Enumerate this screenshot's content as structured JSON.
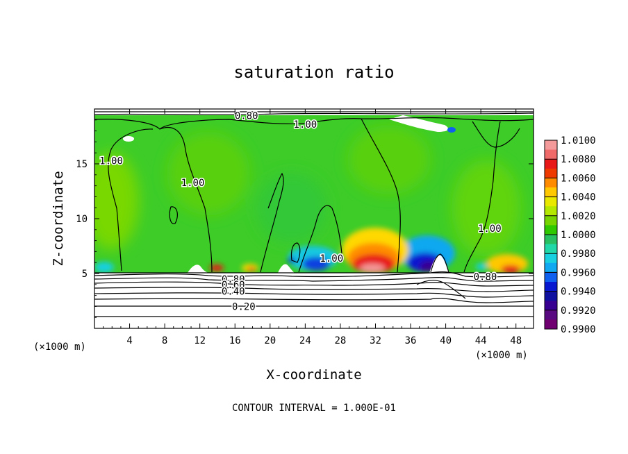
{
  "chart_data": {
    "type": "heatmap",
    "title": "saturation ratio",
    "xlabel": "X-coordinate",
    "ylabel": "Z-coordinate",
    "x_unit": "(×1000 m)",
    "xlim": [
      0,
      50
    ],
    "ylim": [
      0,
      20
    ],
    "xticks": [
      4,
      8,
      12,
      16,
      20,
      24,
      28,
      32,
      36,
      40,
      44,
      48
    ],
    "yticks": [
      5,
      10,
      15
    ],
    "footer": "CONTOUR INTERVAL = 1.000E-01",
    "colorbar": {
      "range": [
        0.99,
        1.01
      ],
      "labels": [
        "1.0100",
        "1.0080",
        "1.0060",
        "1.0040",
        "1.0020",
        "1.0000",
        "0.9980",
        "0.9960",
        "0.9940",
        "0.9920",
        "0.9900"
      ],
      "colors": [
        "#f49a9a",
        "#f06a6a",
        "#e81818",
        "#ee3a00",
        "#ff8c00",
        "#ffc800",
        "#e8e800",
        "#b4e800",
        "#78d400",
        "#30c800",
        "#28c060",
        "#20d8a8",
        "#18d0e0",
        "#10a8f0",
        "#1060f0",
        "#0818d0",
        "#1010a0",
        "#380090",
        "#5a0a80",
        "#700070"
      ]
    },
    "contour_labels": [
      {
        "text": "0.80",
        "x": 17.3,
        "z": 19.4
      },
      {
        "text": "1.00",
        "x": 24.0,
        "z": 18.6
      },
      {
        "text": "1.00",
        "x": 1.9,
        "z": 15.3
      },
      {
        "text": "1.00",
        "x": 11.2,
        "z": 13.3
      },
      {
        "text": "1.00",
        "x": 27.0,
        "z": 6.4
      },
      {
        "text": "1.00",
        "x": 45.0,
        "z": 9.1
      },
      {
        "text": "0.80",
        "x": 15.8,
        "z": 4.5
      },
      {
        "text": "0.60",
        "x": 15.8,
        "z": 4.0
      },
      {
        "text": "0.40",
        "x": 15.8,
        "z": 3.4
      },
      {
        "text": "0.20",
        "x": 17.0,
        "z": 2.0
      },
      {
        "text": "0.80",
        "x": 44.5,
        "z": 4.7
      }
    ]
  }
}
